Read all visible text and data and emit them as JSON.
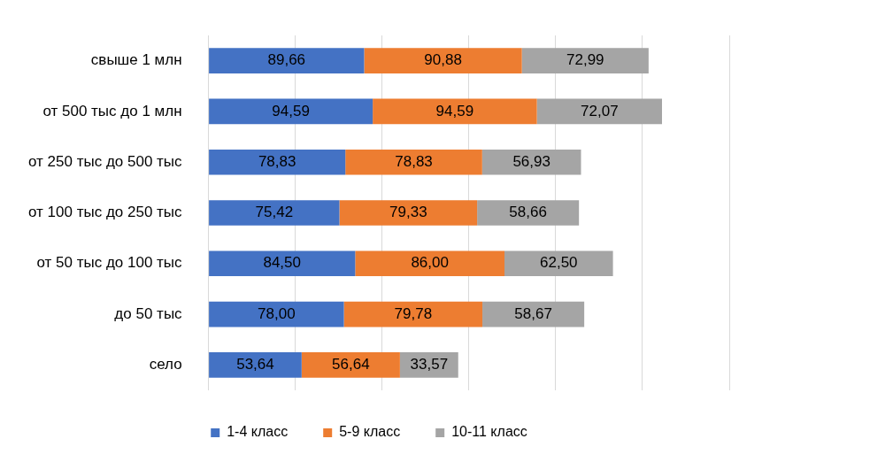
{
  "chart_data": {
    "type": "bar",
    "orientation": "horizontal",
    "stacked": true,
    "categories": [
      "свыше 1 млн",
      "от 500 тыс до 1 млн",
      "от 250 тыс до 500 тыс",
      "от 100 тыс до 250 тыс",
      "от 50 тыс до 100 тыс",
      "до 50 тыс",
      "село"
    ],
    "series": [
      {
        "name": "1-4 класс",
        "color": "#4472c4",
        "values": [
          89.66,
          94.59,
          78.83,
          75.42,
          84.5,
          78.0,
          53.64
        ],
        "value_labels": [
          "89,66",
          "94,59",
          "78,83",
          "75,42",
          "84,50",
          "78,00",
          "53,64"
        ]
      },
      {
        "name": "5-9 класс",
        "color": "#ed7d31",
        "values": [
          90.88,
          94.59,
          78.83,
          79.33,
          86.0,
          79.78,
          56.64
        ],
        "value_labels": [
          "90,88",
          "94,59",
          "78,83",
          "79,33",
          "86,00",
          "79,78",
          "56,64"
        ]
      },
      {
        "name": "10-11 класс",
        "color": "#a5a5a5",
        "values": [
          72.99,
          72.07,
          56.93,
          58.66,
          62.5,
          58.67,
          33.57
        ],
        "value_labels": [
          "72,99",
          "72,07",
          "56,93",
          "58,66",
          "62,50",
          "58,67",
          "33,57"
        ]
      }
    ],
    "xlim": [
      0,
      300
    ],
    "xticks": [
      {
        "value": 0,
        "label": null
      },
      {
        "value": 50,
        "label": null
      },
      {
        "value": 100,
        "label": null
      },
      {
        "value": 150,
        "label": null
      },
      {
        "value": 200,
        "label": null
      },
      {
        "value": 250,
        "label": null
      },
      {
        "value": 300,
        "label": null
      }
    ],
    "tick_labels": "y",
    "grid": "x",
    "legend": "bottom"
  }
}
